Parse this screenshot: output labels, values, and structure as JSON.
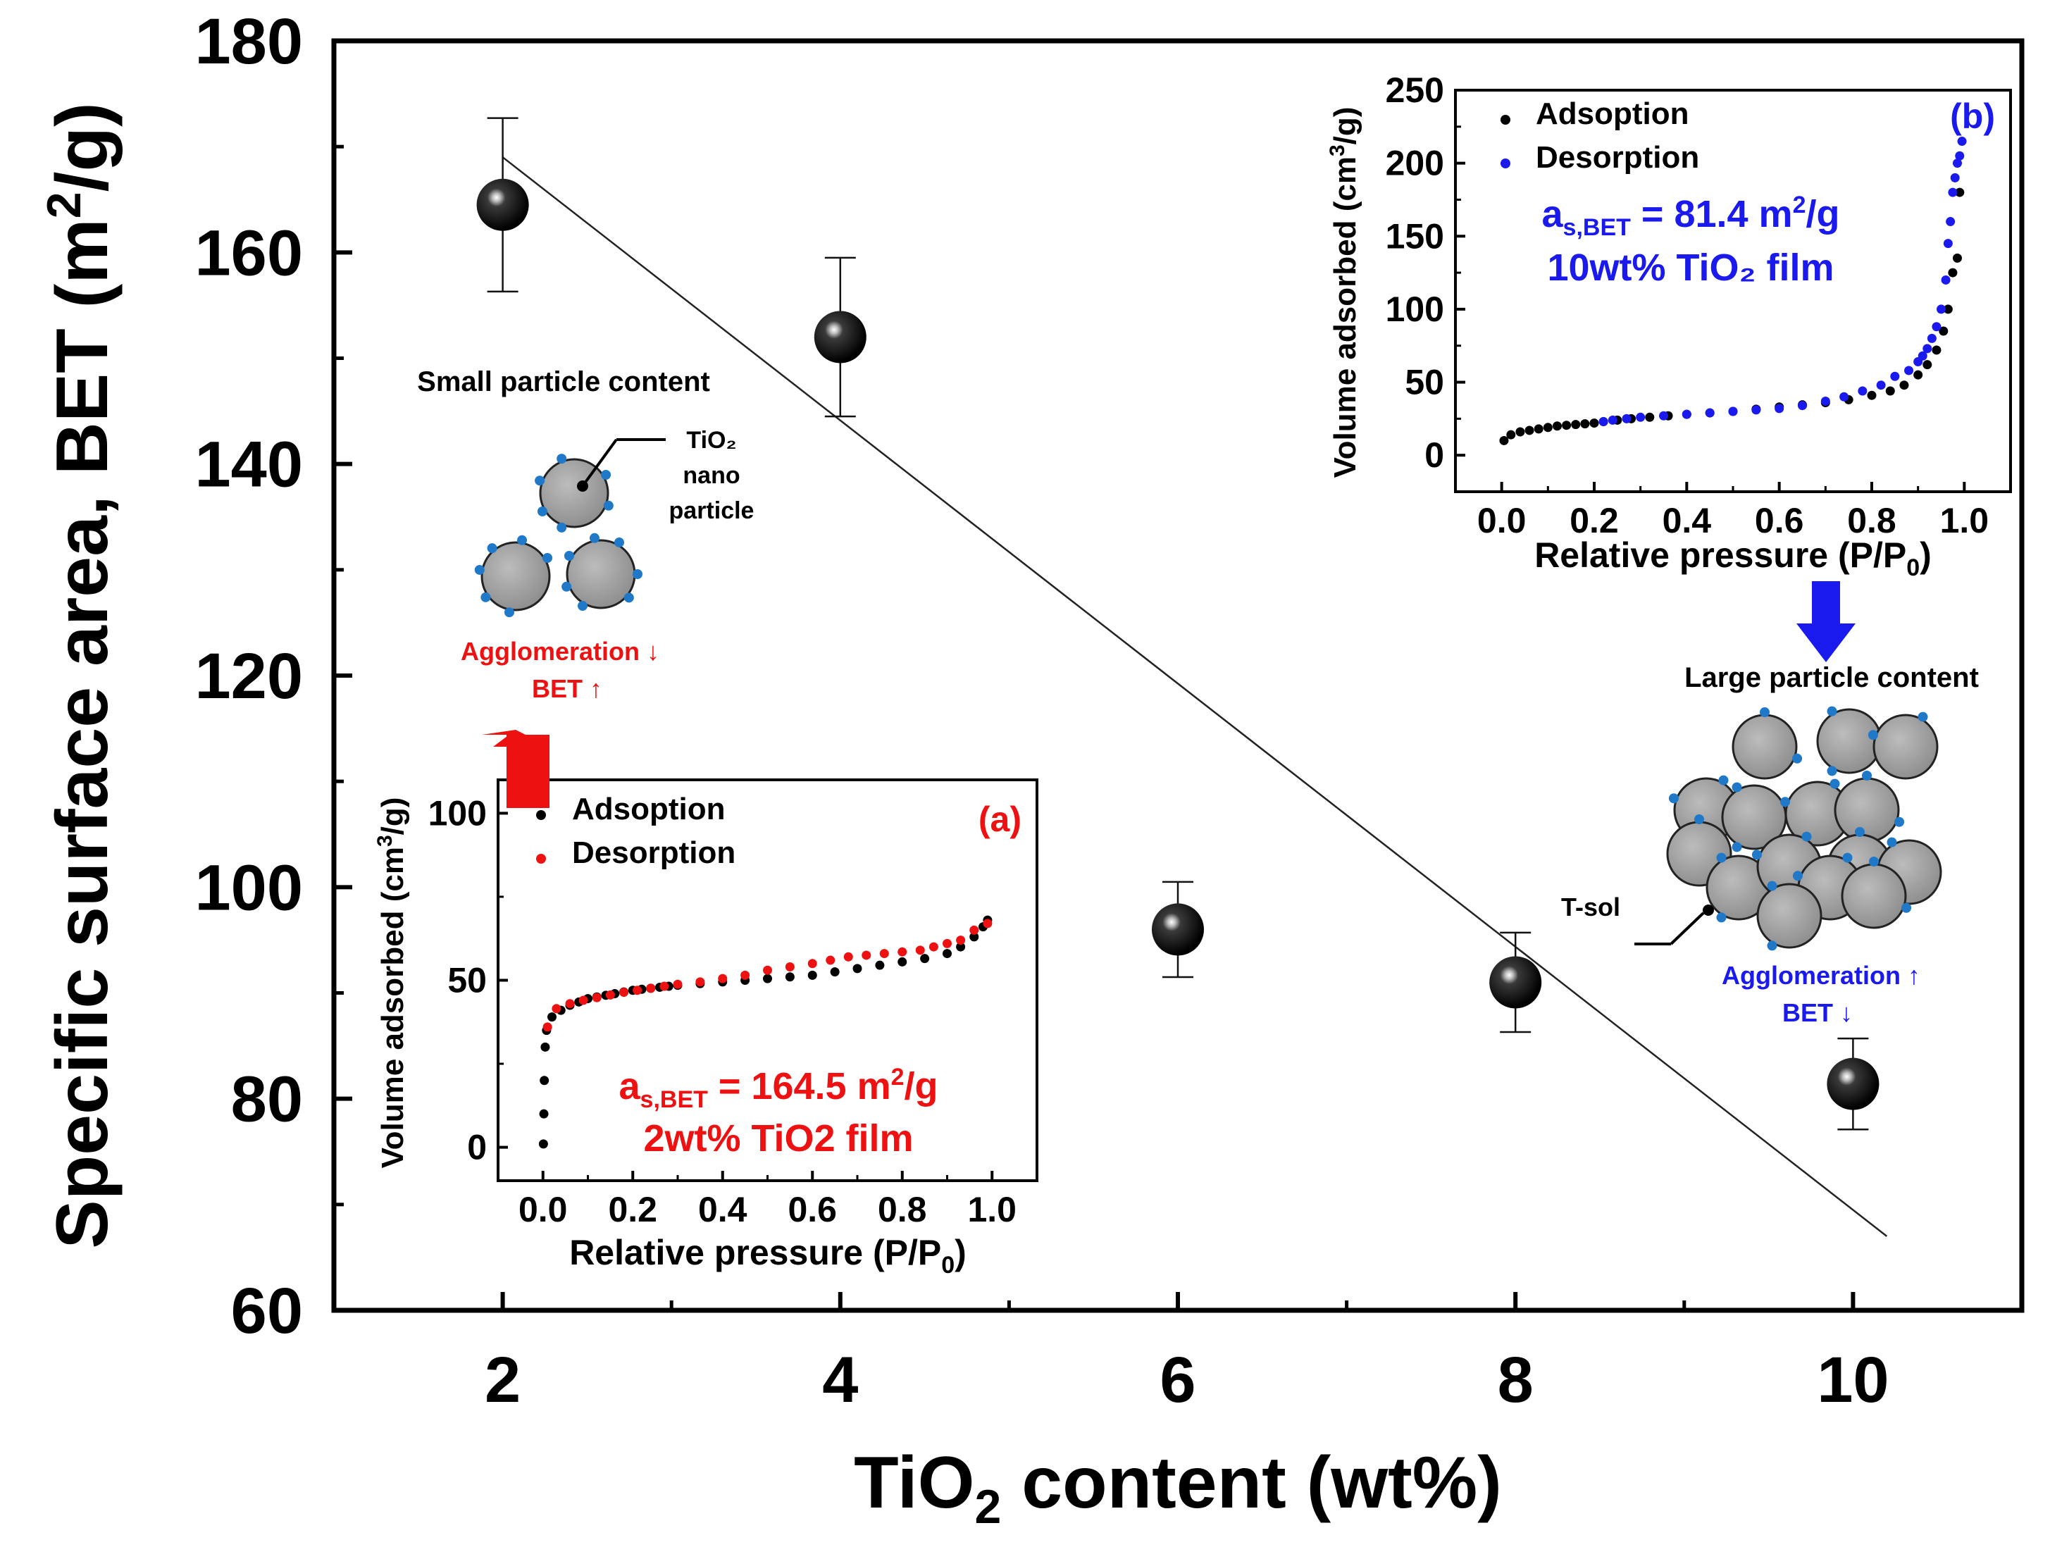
{
  "chart_data": [
    {
      "type": "scatter",
      "xlabel": {
        "main": "TiO",
        "sub": "2",
        "rest": " content (wt%)"
      },
      "ylabel": {
        "main": "Specific surface area, BET (m",
        "sup": "2",
        "rest": "/g)"
      },
      "xlim": [
        1,
        11
      ],
      "ylim": [
        60,
        180
      ],
      "xticks": [
        2,
        4,
        6,
        8,
        10
      ],
      "yticks": [
        60,
        80,
        100,
        120,
        140,
        160,
        180
      ],
      "x": [
        2,
        4,
        6,
        8,
        10
      ],
      "y": [
        164.5,
        152,
        96,
        91,
        81.4
      ],
      "error": [
        8.2,
        7.5,
        4.5,
        4.7,
        4.3
      ],
      "fit_line": {
        "x": [
          2,
          10.2
        ],
        "y": [
          169,
          67
        ]
      },
      "grid": false
    },
    {
      "type": "scatter",
      "panel": "(a)",
      "panel_color": "#ee1111",
      "xlabel": {
        "main": "Relative pressure (P/P",
        "sub": "0",
        "rest": ")"
      },
      "ylabel": {
        "main": "Volume adsorbed (cm",
        "sup": "3",
        "rest": "/g)"
      },
      "xlim": [
        -0.1,
        1.1
      ],
      "ylim": [
        -10,
        110
      ],
      "xticks": [
        "0.0",
        "0.2",
        "0.4",
        "0.6",
        "0.8",
        "1.0"
      ],
      "yticks": [
        "0",
        "50",
        "100"
      ],
      "legend": [
        {
          "label": "Adsoption",
          "color": "#000000"
        },
        {
          "label": "Desorption",
          "color": "#ee1111"
        }
      ],
      "series": [
        {
          "name": "Adsoption",
          "color": "#000000",
          "x": [
            0.001,
            0.002,
            0.003,
            0.005,
            0.008,
            0.02,
            0.04,
            0.06,
            0.08,
            0.1,
            0.12,
            0.14,
            0.16,
            0.18,
            0.2,
            0.22,
            0.24,
            0.26,
            0.28,
            0.3,
            0.35,
            0.4,
            0.45,
            0.5,
            0.55,
            0.6,
            0.65,
            0.7,
            0.75,
            0.8,
            0.85,
            0.9,
            0.93,
            0.96,
            0.98,
            0.99
          ],
          "y": [
            1,
            10,
            20,
            30,
            35,
            39,
            41,
            42.5,
            43.5,
            44.5,
            45,
            45.5,
            46,
            46.5,
            47,
            47.3,
            47.6,
            47.9,
            48.2,
            48.5,
            49,
            49.5,
            50,
            50.5,
            51,
            51.5,
            52.5,
            53.5,
            54.5,
            55.5,
            56.5,
            58,
            60,
            63,
            66,
            68
          ]
        },
        {
          "name": "Desorption",
          "color": "#ee1111",
          "x": [
            0.99,
            0.96,
            0.93,
            0.9,
            0.87,
            0.84,
            0.8,
            0.76,
            0.72,
            0.68,
            0.64,
            0.6,
            0.55,
            0.5,
            0.45,
            0.4,
            0.35,
            0.3,
            0.27,
            0.24,
            0.21,
            0.18,
            0.15,
            0.12,
            0.09,
            0.06,
            0.03,
            0.01
          ],
          "y": [
            67,
            65,
            62,
            61,
            60,
            59,
            58.5,
            58,
            57.5,
            57,
            56,
            55,
            54,
            53,
            51.5,
            50.5,
            49.5,
            48.8,
            48.2,
            47.6,
            47,
            46.4,
            45.6,
            44.8,
            44,
            43,
            41.5,
            36
          ]
        }
      ],
      "annotation": {
        "prefix": "a",
        "sub": "s,BET",
        "value": " = 164.5 m",
        "sup": "2",
        "unit": "/g",
        "line2": "2wt% TiO2 film",
        "color": "#ee1111"
      }
    },
    {
      "type": "scatter",
      "panel": "(b)",
      "panel_color": "#1a1aee",
      "xlabel": {
        "main": "Relative pressure (P/P",
        "sub": "0",
        "rest": ")"
      },
      "ylabel": {
        "main": "Volume adsorbed (cm",
        "sup": "3",
        "rest": "/g)"
      },
      "xlim": [
        -0.1,
        1.1
      ],
      "ylim": [
        -25,
        250
      ],
      "xticks": [
        "0.0",
        "0.2",
        "0.4",
        "0.6",
        "0.8",
        "1.0"
      ],
      "yticks": [
        "0",
        "50",
        "100",
        "150",
        "200",
        "250"
      ],
      "legend": [
        {
          "label": "Adsoption",
          "color": "#000000"
        },
        {
          "label": "Desorption",
          "color": "#1a1aee"
        }
      ],
      "series": [
        {
          "name": "Adsoption",
          "color": "#000000",
          "x": [
            0.005,
            0.02,
            0.04,
            0.06,
            0.08,
            0.1,
            0.12,
            0.14,
            0.16,
            0.18,
            0.2,
            0.22,
            0.25,
            0.28,
            0.32,
            0.36,
            0.4,
            0.45,
            0.5,
            0.55,
            0.6,
            0.65,
            0.7,
            0.75,
            0.8,
            0.84,
            0.87,
            0.9,
            0.92,
            0.94,
            0.955,
            0.965,
            0.975,
            0.985,
            0.99
          ],
          "y": [
            10,
            14,
            16,
            17,
            18,
            19,
            20,
            20.5,
            21,
            21.5,
            22,
            23,
            24,
            25,
            26,
            27,
            28,
            29,
            30,
            31.5,
            33,
            34.5,
            36,
            38,
            41,
            44,
            48,
            55,
            62,
            72,
            85,
            100,
            125,
            135,
            180
          ]
        },
        {
          "name": "Desorption",
          "color": "#1a1aee",
          "x": [
            0.995,
            0.99,
            0.985,
            0.98,
            0.975,
            0.97,
            0.965,
            0.96,
            0.95,
            0.94,
            0.93,
            0.92,
            0.91,
            0.9,
            0.88,
            0.85,
            0.82,
            0.78,
            0.74,
            0.7,
            0.65,
            0.6,
            0.55,
            0.5,
            0.45,
            0.4,
            0.35,
            0.3,
            0.27,
            0.24,
            0.22
          ],
          "y": [
            215,
            205,
            200,
            190,
            180,
            160,
            145,
            120,
            100,
            88,
            80,
            73,
            68,
            64,
            58,
            54,
            48,
            44,
            40,
            37,
            34,
            32,
            31,
            30,
            29,
            28,
            27,
            26,
            25,
            24,
            23
          ]
        }
      ],
      "annotation": {
        "prefix": "a",
        "sub": "s,BET",
        "value": " = 81.4 m",
        "sup": "2",
        "unit": "/g",
        "line2": "10wt%  TiO₂ film",
        "color": "#1a1aee"
      }
    }
  ],
  "schematics": {
    "small": {
      "title": "Small particle content",
      "callout": [
        "TiO₂",
        "nano",
        "particle"
      ],
      "effect_line1": "Agglomeration  ↓",
      "effect_line2": "BET  ↑",
      "color": "#ee1111"
    },
    "large": {
      "title": "Large particle content",
      "callout": "T-sol",
      "effect_line1": "Agglomeration  ↑",
      "effect_line2": "BET  ↓",
      "color": "#1a1aee"
    },
    "particle_fill": "#9a9a9a",
    "dot_color": "#1f78c8"
  }
}
